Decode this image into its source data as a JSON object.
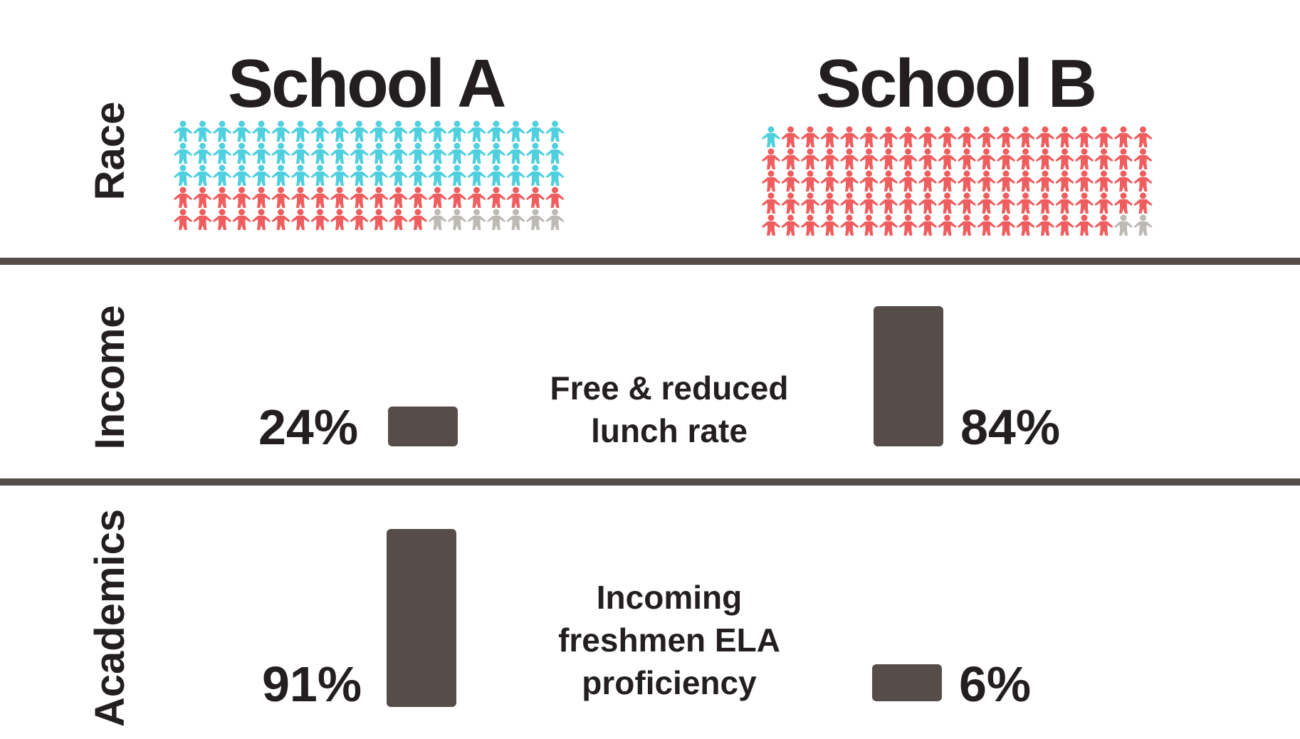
{
  "colors": {
    "teal": "#4fd0df",
    "coral": "#f05d5e",
    "gray": "#bdbab5",
    "bar": "#564d4a",
    "divider": "#564d4a",
    "text": "#231f20"
  },
  "schools": {
    "a_title": "School A",
    "b_title": "School B"
  },
  "rows": {
    "race": "Race",
    "income": "Income",
    "academics": "Academics"
  },
  "income": {
    "caption_line1": "Free & reduced",
    "caption_line2": "lunch rate",
    "a_label": "24%",
    "b_label": "84%"
  },
  "academics": {
    "caption_line1": "Incoming",
    "caption_line2": "freshmen ELA",
    "caption_line3": "proficiency",
    "a_label": "91%",
    "b_label": "6%"
  },
  "chart_data": [
    {
      "type": "pictogram",
      "panel": "Race",
      "series": [
        {
          "school": "School A",
          "counts": {
            "teal": 60,
            "coral": 33,
            "gray": 7
          }
        },
        {
          "school": "School B",
          "counts": {
            "teal": 1,
            "coral": 97,
            "gray": 2
          }
        }
      ]
    },
    {
      "type": "bar",
      "panel": "Income",
      "title": "Free & reduced lunch rate",
      "categories": [
        "School A",
        "School B"
      ],
      "values": [
        24,
        84
      ],
      "unit": "%"
    },
    {
      "type": "bar",
      "panel": "Academics",
      "title": "Incoming freshmen ELA proficiency",
      "categories": [
        "School A",
        "School B"
      ],
      "values": [
        91,
        6
      ],
      "unit": "%"
    }
  ]
}
